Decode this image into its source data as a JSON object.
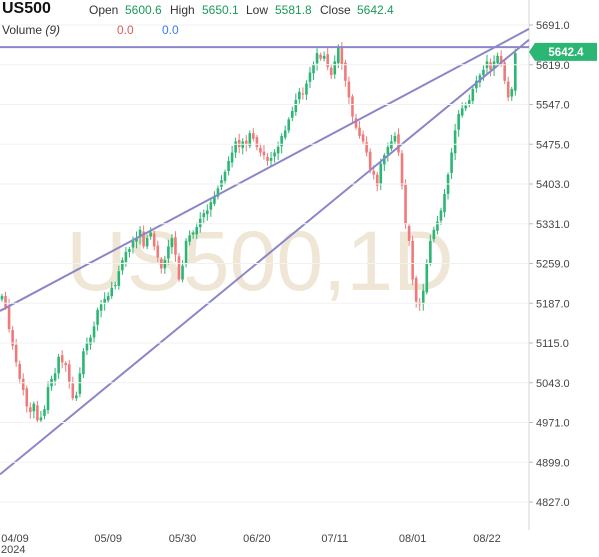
{
  "header": {
    "symbol": "US500",
    "open_label": "Open",
    "open_value": "5600.6",
    "high_label": "High",
    "high_value": "5650.1",
    "low_label": "Low",
    "low_value": "5581.8",
    "close_label": "Close",
    "close_value": "5642.4",
    "volume_label": "Volume",
    "volume_period": "(9)",
    "volume_value_a": "0.0",
    "volume_value_b": "0.0"
  },
  "watermark": "US500,1D",
  "price_badge": "5642.4",
  "colors": {
    "up": "#2bb673",
    "down": "#f07a7a",
    "trendline": "#8a86c8",
    "badge": "#2bb673",
    "watermark": "#efe6d6",
    "grid": "#f2f2f2"
  },
  "chart_data": {
    "type": "candlestick",
    "symbol": "US500",
    "timeframe": "1D",
    "x_tick_labels": [
      "04/09",
      "05/09",
      "05/30",
      "06/20",
      "07/11",
      "08/01",
      "08/22"
    ],
    "x_year_label": "2024",
    "y_tick_labels": [
      "5691.0",
      "5619.0",
      "5547.0",
      "5475.0",
      "5403.0",
      "5331.0",
      "5259.0",
      "5187.0",
      "5115.0",
      "5043.0",
      "4971.0",
      "4899.0",
      "4827.0"
    ],
    "ylim": [
      4792,
      5750
    ],
    "last_price": 5642.4,
    "horizontal_line": 5651,
    "close": [
      5200,
      5180,
      5140,
      5110,
      5080,
      5050,
      5030,
      5000,
      4990,
      5005,
      4975,
      4980,
      4995,
      5035,
      5050,
      5060,
      5090,
      5080,
      5075,
      5045,
      5015,
      5020,
      5060,
      5100,
      5115,
      5125,
      5145,
      5175,
      5185,
      5195,
      5200,
      5215,
      5220,
      5245,
      5265,
      5280,
      5285,
      5300,
      5305,
      5320,
      5290,
      5305,
      5315,
      5290,
      5270,
      5250,
      5265,
      5290,
      5305,
      5275,
      5230,
      5255,
      5300,
      5310,
      5315,
      5325,
      5340,
      5350,
      5355,
      5370,
      5380,
      5395,
      5410,
      5425,
      5445,
      5460,
      5480,
      5470,
      5480,
      5475,
      5495,
      5485,
      5470,
      5460,
      5455,
      5445,
      5450,
      5460,
      5470,
      5490,
      5500,
      5520,
      5535,
      5555,
      5570,
      5565,
      5585,
      5605,
      5620,
      5640,
      5630,
      5635,
      5615,
      5600,
      5625,
      5650,
      5620,
      5590,
      5560,
      5525,
      5505,
      5490,
      5480,
      5460,
      5430,
      5420,
      5400,
      5440,
      5455,
      5470,
      5480,
      5490,
      5460,
      5400,
      5330,
      5300,
      5230,
      5190,
      5185,
      5210,
      5260,
      5300,
      5320,
      5335,
      5355,
      5385,
      5420,
      5460,
      5500,
      5530,
      5540,
      5545,
      5555,
      5575,
      5590,
      5600,
      5610,
      5625,
      5610,
      5625,
      5635,
      5620,
      5590,
      5560,
      5575,
      5640
    ]
  }
}
